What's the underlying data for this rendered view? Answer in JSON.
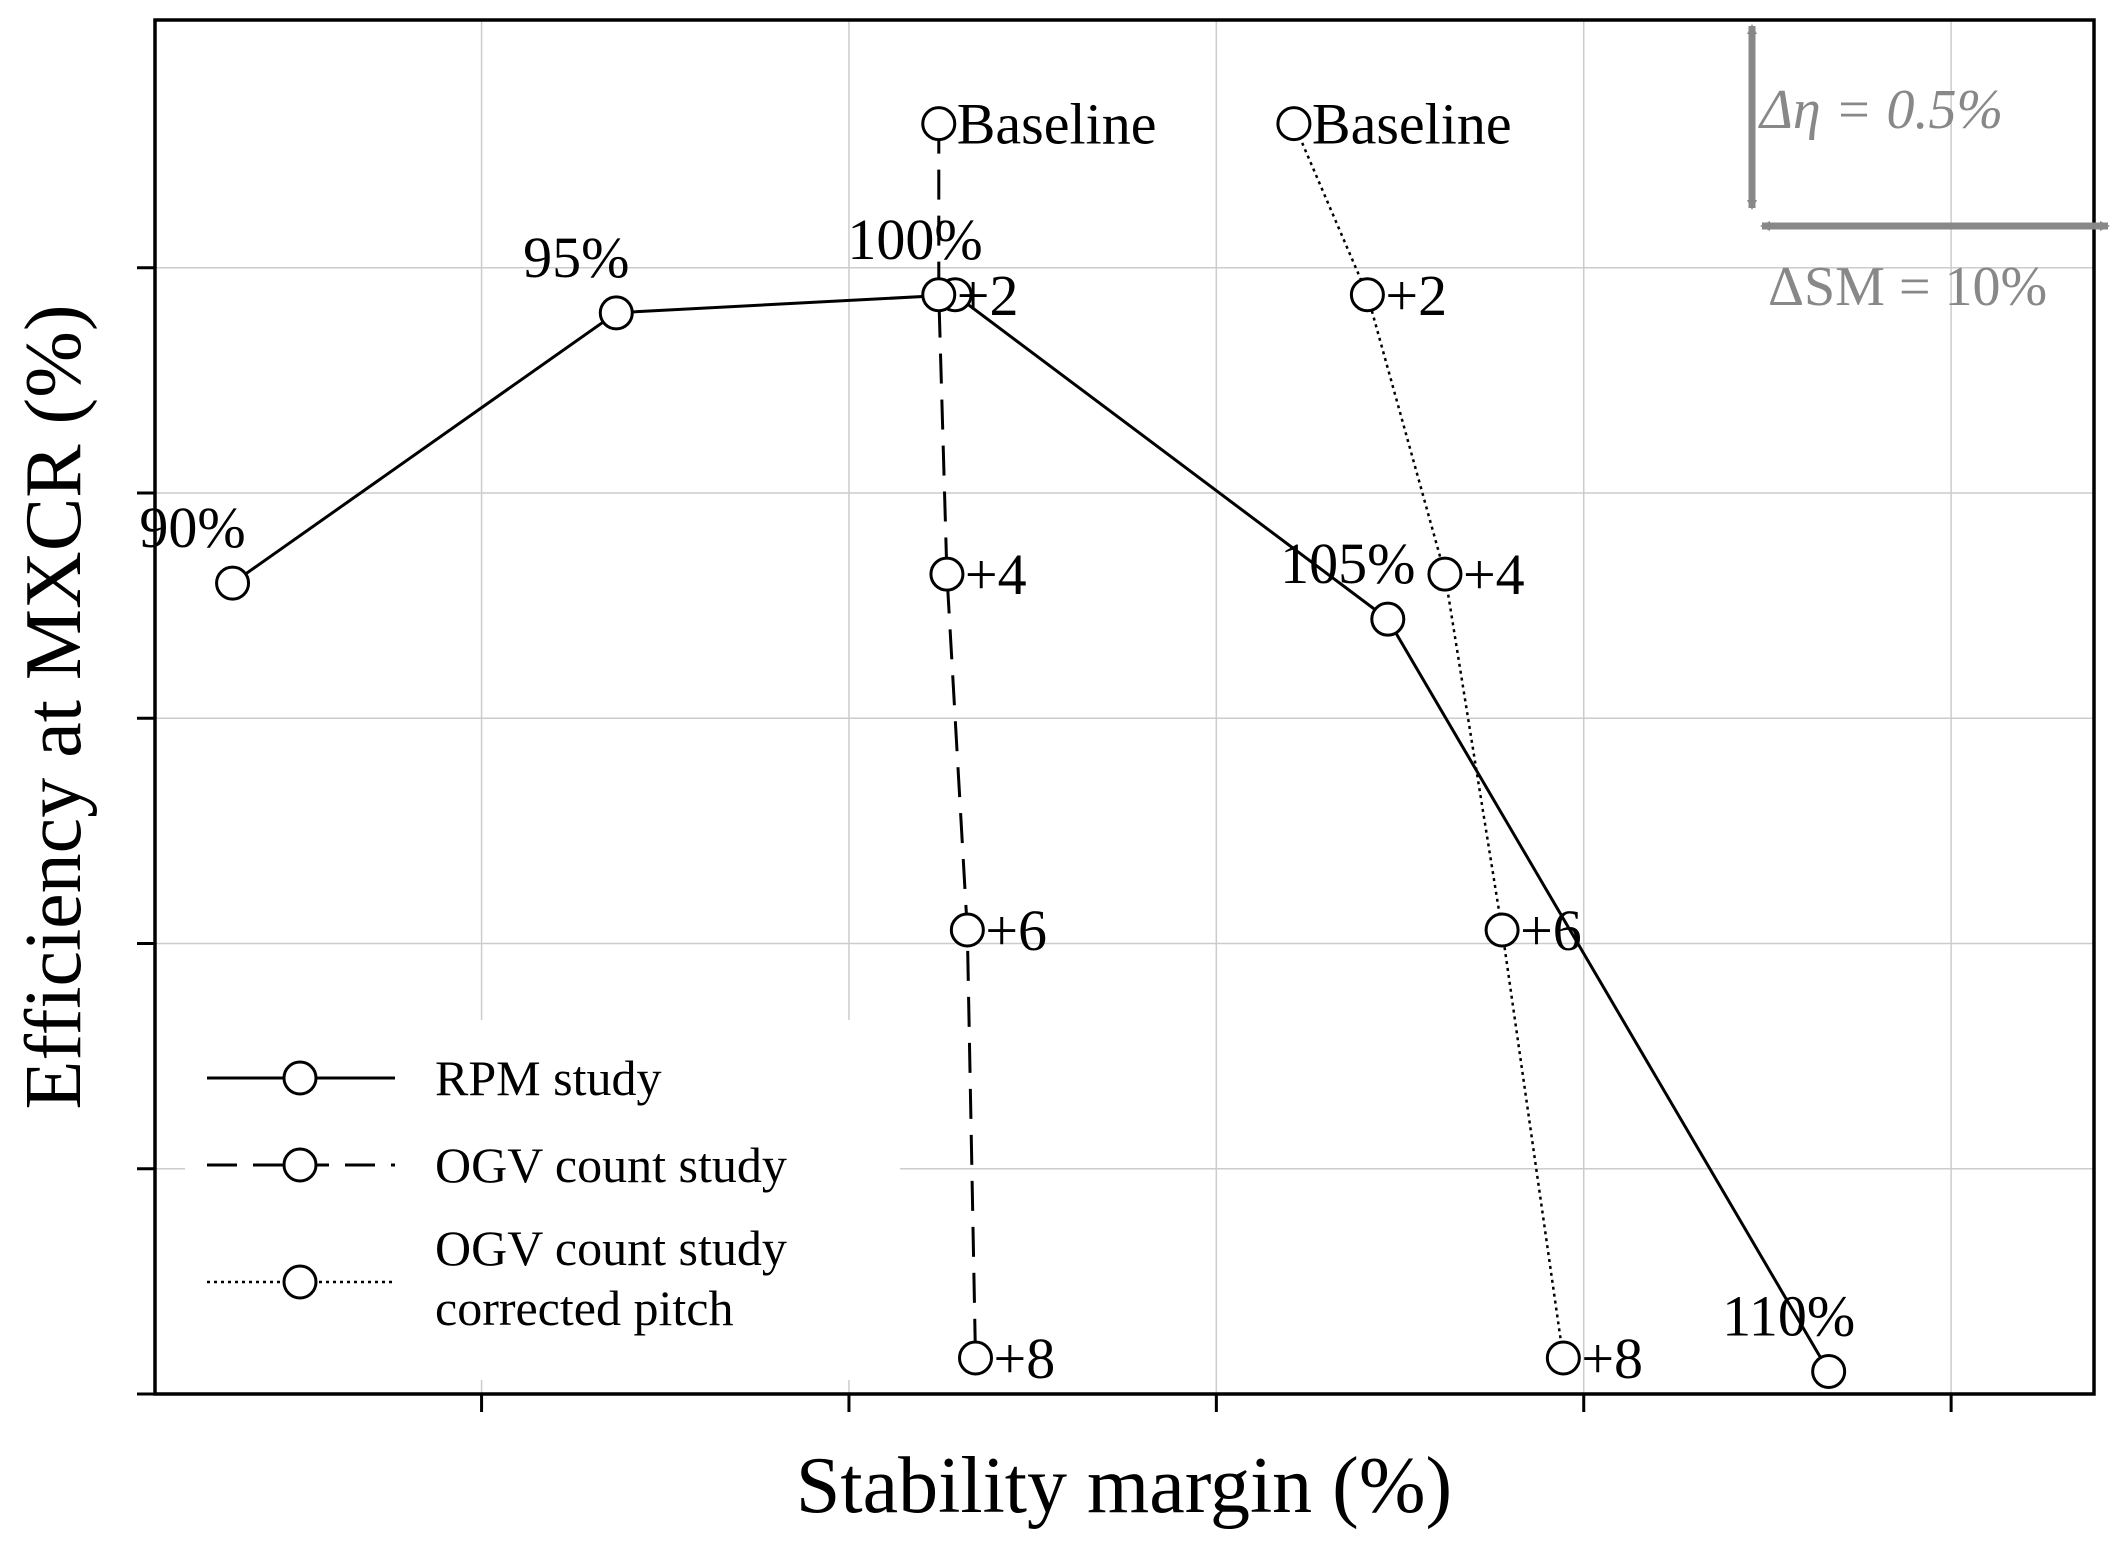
{
  "chart_data": {
    "type": "line",
    "title": "",
    "xlabel": "Stability margin (%)",
    "ylabel": "Efficiency at MXCR (%)",
    "axis_units": "relative (no numeric tick labels); x: 1 unit = 1 % SM, y: 1 unit = 1 % efficiency",
    "xlim": [
      0,
      47.5
    ],
    "ylim": [
      -1.5,
      1.55
    ],
    "xticks": [
      8,
      17,
      26,
      35,
      44
    ],
    "yticks": [
      -1.5,
      -1.0,
      -0.5,
      0.0,
      0.5,
      1.0
    ],
    "grid": true,
    "legend_position": "bottom-left",
    "series": [
      {
        "name": "RPM study",
        "legend_label": "RPM study",
        "style": "solid",
        "x": [
          1.9,
          11.3,
          19.6,
          30.2,
          41.0
        ],
        "y": [
          0.3,
          0.9,
          0.94,
          0.22,
          -1.45
        ],
        "point_labels": [
          "90%",
          "95%",
          "100%",
          "105%",
          "110%"
        ]
      },
      {
        "name": "OGV count study",
        "legend_label": "OGV count study",
        "style": "dashed",
        "x": [
          19.2,
          19.4,
          19.9,
          20.1
        ],
        "y": [
          0.94,
          0.32,
          -0.47,
          -1.42
        ],
        "point_labels": [
          "+2",
          "+4",
          "+6",
          "+8"
        ]
      },
      {
        "name": "OGV count study corrected pitch",
        "legend_label_lines": [
          "OGV count study",
          "corrected pitch"
        ],
        "style": "dotted",
        "x": [
          27.9,
          29.7,
          31.6,
          33.0,
          34.5
        ],
        "y": [
          1.32,
          0.94,
          0.32,
          -0.47,
          -1.42
        ],
        "point_labels": [
          "Baseline",
          "+2",
          "+4",
          "+6",
          "+8"
        ]
      }
    ],
    "baseline_point": {
      "x": 19.2,
      "y": 1.32,
      "label": "Baseline",
      "note": "shared start of OGV count study (dashed line begins here)"
    },
    "scale_annotations": {
      "efficiency_scale": "Δη = 0.5%",
      "stability_margin_scale": "ΔSM = 10%",
      "color": "#888888"
    }
  },
  "colors": {
    "line": "#000000",
    "grid": "#cccccc",
    "annotation": "#888888",
    "marker_fill": "#ffffff"
  }
}
